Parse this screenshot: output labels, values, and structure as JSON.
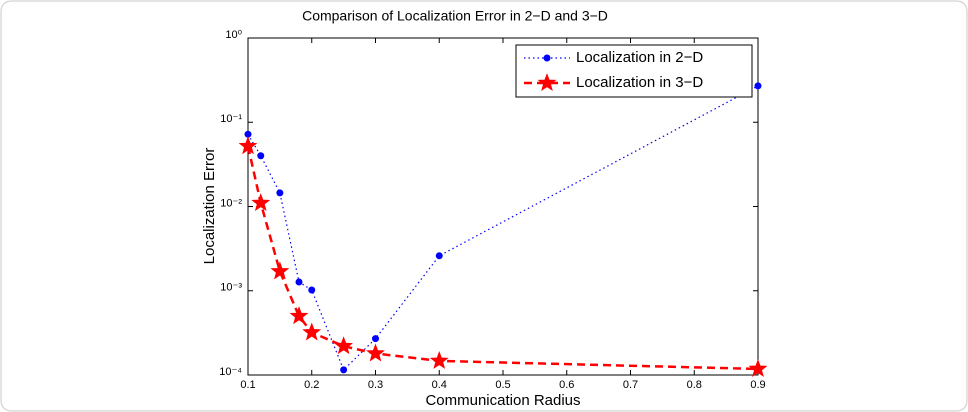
{
  "chart_data": {
    "type": "line",
    "title": "Comparison of Localization Error in 2−D and 3−D",
    "x_label": "Communication Radius",
    "y_label": "Localization Error",
    "y_scale": "log",
    "legend_position": "upper right",
    "x": [
      0.1,
      0.12,
      0.15,
      0.18,
      0.2,
      0.25,
      0.3,
      0.4,
      0.9
    ],
    "series": [
      {
        "name": "Localization in 2−D",
        "color": "#0000ff",
        "linestyle": "dotted",
        "marker": "dot",
        "values": [
          0.072,
          0.04,
          0.0145,
          0.00127,
          0.00102,
          0.000115,
          0.00027,
          0.0026,
          0.27
        ]
      },
      {
        "name": "Localization in 3−D",
        "color": "#ff0000",
        "linestyle": "dashed",
        "marker": "star",
        "values": [
          0.052,
          0.011,
          0.0017,
          0.0005,
          0.00032,
          0.00022,
          0.00018,
          0.000147,
          0.000118
        ]
      }
    ],
    "xlim": [
      0.1,
      0.9
    ],
    "xticks": [
      0.1,
      0.2,
      0.3,
      0.4,
      0.5,
      0.6,
      0.7,
      0.8,
      0.9
    ],
    "ylim": [
      0.0001,
      1
    ],
    "yticks": [
      {
        "value": 0.0001,
        "label": "10⁻⁴"
      },
      {
        "value": 0.001,
        "label": "10⁻³"
      },
      {
        "value": 0.01,
        "label": "10⁻²"
      },
      {
        "value": 0.1,
        "label": "10⁻¹"
      },
      {
        "value": 1,
        "label": "10⁰"
      }
    ]
  }
}
